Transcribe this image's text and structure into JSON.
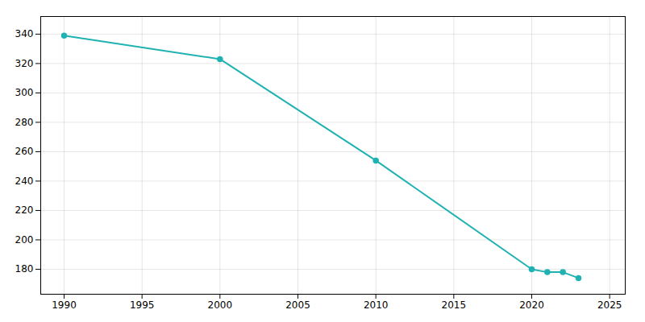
{
  "chart_data": {
    "type": "line",
    "x": [
      1990,
      2000,
      2010,
      2020,
      2021,
      2022,
      2023
    ],
    "values": [
      339,
      323,
      254,
      180,
      178,
      178,
      174
    ],
    "color": "#20b2b2",
    "marker": "circle",
    "xlim": [
      1988.5,
      2026
    ],
    "ylim": [
      163,
      352
    ],
    "xticks": [
      1990,
      1995,
      2000,
      2005,
      2010,
      2015,
      2020,
      2025
    ],
    "yticks": [
      180,
      200,
      220,
      240,
      260,
      280,
      300,
      320,
      340
    ],
    "grid": true
  }
}
